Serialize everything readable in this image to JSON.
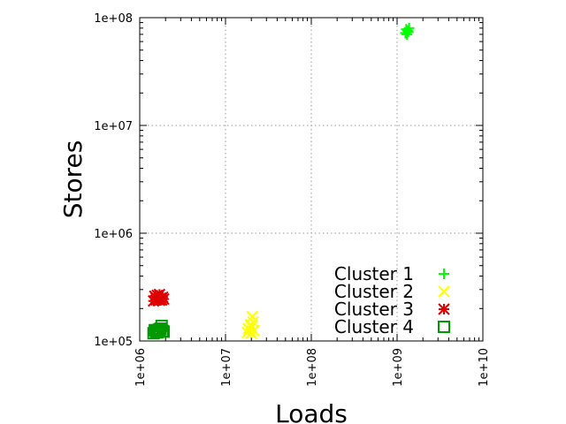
{
  "chart_data": {
    "type": "scatter",
    "xlabel": "Loads",
    "ylabel": "Stores",
    "xscale": "log",
    "yscale": "log",
    "xlim": [
      1000000,
      10000000000
    ],
    "ylim": [
      100000,
      100000000
    ],
    "grid": true,
    "legend_position": "bottom-right",
    "x_ticks": [
      "1e+06",
      "1e+07",
      "1e+08",
      "1e+09",
      "1e+10"
    ],
    "y_ticks": [
      "1e+05",
      "1e+06",
      "1e+07",
      "1e+08"
    ],
    "x_tick_values": [
      1000000,
      10000000,
      100000000,
      1000000000,
      10000000000
    ],
    "y_tick_values": [
      100000,
      1000000,
      10000000,
      100000000
    ],
    "series": [
      {
        "name": "Cluster 1",
        "marker": "plus",
        "color": "#00ff00",
        "points": [
          {
            "x": 1250000000,
            "y": 72000000
          },
          {
            "x": 1320000000,
            "y": 76000000
          },
          {
            "x": 1380000000,
            "y": 80000000
          },
          {
            "x": 1280000000,
            "y": 78000000
          },
          {
            "x": 1350000000,
            "y": 74000000
          },
          {
            "x": 1300000000,
            "y": 70000000
          }
        ]
      },
      {
        "name": "Cluster 2",
        "marker": "cross",
        "color": "#ffff00",
        "points": [
          {
            "x": 18000000,
            "y": 120000
          },
          {
            "x": 19000000,
            "y": 128000
          },
          {
            "x": 20000000,
            "y": 135000
          },
          {
            "x": 21000000,
            "y": 150000
          },
          {
            "x": 20500000,
            "y": 168000
          },
          {
            "x": 19500000,
            "y": 142000
          },
          {
            "x": 18500000,
            "y": 130000
          },
          {
            "x": 21500000,
            "y": 125000
          },
          {
            "x": 20000000,
            "y": 118000
          }
        ]
      },
      {
        "name": "Cluster 3",
        "marker": "star",
        "color": "#dd0000",
        "points": [
          {
            "x": 1450000,
            "y": 235000
          },
          {
            "x": 1550000,
            "y": 240000
          },
          {
            "x": 1650000,
            "y": 245000
          },
          {
            "x": 1750000,
            "y": 250000
          },
          {
            "x": 1850000,
            "y": 255000
          },
          {
            "x": 1500000,
            "y": 260000
          },
          {
            "x": 1600000,
            "y": 265000
          },
          {
            "x": 1700000,
            "y": 270000
          },
          {
            "x": 1800000,
            "y": 240000
          },
          {
            "x": 1900000,
            "y": 245000
          },
          {
            "x": 1550000,
            "y": 250000
          },
          {
            "x": 1700000,
            "y": 238000
          }
        ]
      },
      {
        "name": "Cluster 4",
        "marker": "square",
        "color": "#009900",
        "points": [
          {
            "x": 1450000,
            "y": 118000
          },
          {
            "x": 1550000,
            "y": 122000
          },
          {
            "x": 1650000,
            "y": 126000
          },
          {
            "x": 1750000,
            "y": 130000
          },
          {
            "x": 1850000,
            "y": 124000
          },
          {
            "x": 1600000,
            "y": 120000
          },
          {
            "x": 1700000,
            "y": 128000
          },
          {
            "x": 1800000,
            "y": 138000
          },
          {
            "x": 1900000,
            "y": 122000
          },
          {
            "x": 1500000,
            "y": 126000
          }
        ]
      }
    ]
  }
}
